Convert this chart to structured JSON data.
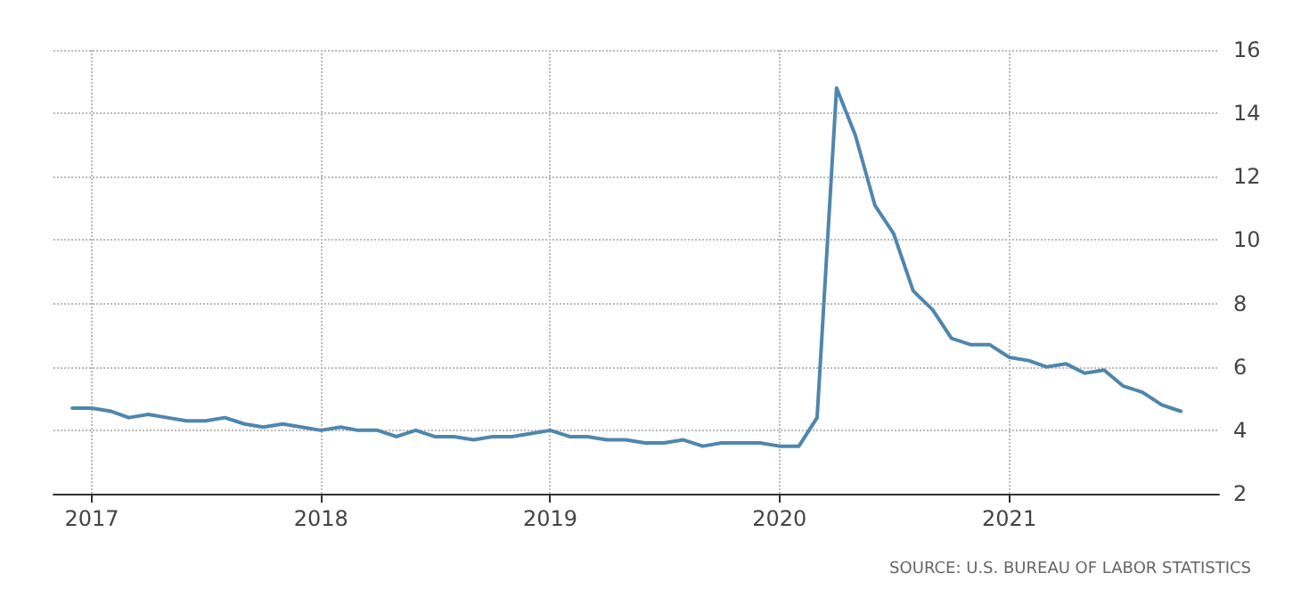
{
  "chart_data": {
    "type": "line",
    "x": [
      "2016-12",
      "2017-01",
      "2017-02",
      "2017-03",
      "2017-04",
      "2017-05",
      "2017-06",
      "2017-07",
      "2017-08",
      "2017-09",
      "2017-10",
      "2017-11",
      "2017-12",
      "2018-01",
      "2018-02",
      "2018-03",
      "2018-04",
      "2018-05",
      "2018-06",
      "2018-07",
      "2018-08",
      "2018-09",
      "2018-10",
      "2018-11",
      "2018-12",
      "2019-01",
      "2019-02",
      "2019-03",
      "2019-04",
      "2019-05",
      "2019-06",
      "2019-07",
      "2019-08",
      "2019-09",
      "2019-10",
      "2019-11",
      "2019-12",
      "2020-01",
      "2020-02",
      "2020-03",
      "2020-04",
      "2020-05",
      "2020-06",
      "2020-07",
      "2020-08",
      "2020-09",
      "2020-10",
      "2020-11",
      "2020-12",
      "2021-01",
      "2021-02",
      "2021-03",
      "2021-04",
      "2021-05",
      "2021-06",
      "2021-07",
      "2021-08",
      "2021-09",
      "2021-10"
    ],
    "series": [
      {
        "color": "#4f86ad",
        "values": [
          4.7,
          4.7,
          4.6,
          4.4,
          4.5,
          4.4,
          4.3,
          4.3,
          4.4,
          4.2,
          4.1,
          4.2,
          4.1,
          4.0,
          4.1,
          4.0,
          4.0,
          3.8,
          4.0,
          3.8,
          3.8,
          3.7,
          3.8,
          3.8,
          3.9,
          4.0,
          3.8,
          3.8,
          3.7,
          3.7,
          3.6,
          3.6,
          3.7,
          3.5,
          3.6,
          3.6,
          3.6,
          3.5,
          3.5,
          4.4,
          14.8,
          13.3,
          11.1,
          10.2,
          8.4,
          7.8,
          6.9,
          6.7,
          6.7,
          6.3,
          6.2,
          6.0,
          6.1,
          5.8,
          5.9,
          5.4,
          5.2,
          4.8,
          4.6
        ]
      }
    ],
    "xlim": [
      "2016-11",
      "2021-12"
    ],
    "xticks": [
      {
        "value": "2017-01",
        "label": "2017"
      },
      {
        "value": "2018-01",
        "label": "2018"
      },
      {
        "value": "2019-01",
        "label": "2019"
      },
      {
        "value": "2020-01",
        "label": "2020"
      },
      {
        "value": "2021-01",
        "label": "2021"
      }
    ],
    "ylim": [
      2,
      16
    ],
    "yticks": [
      2,
      4,
      6,
      8,
      10,
      12,
      14,
      16
    ],
    "grid": true,
    "marker": "none",
    "line_style": "solid",
    "annotations": [
      "SOURCE: U.S. BUREAU OF LABOR STATISTICS"
    ]
  }
}
